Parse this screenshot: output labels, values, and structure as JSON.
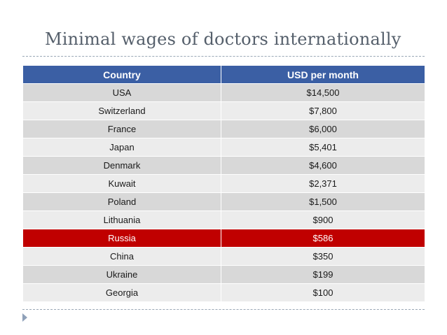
{
  "slide": {
    "title": "Minimal wages of doctors internationally"
  },
  "table": {
    "headers": [
      "Country",
      "USD per month"
    ],
    "rows": [
      {
        "country": "USA",
        "usd": "$14,500"
      },
      {
        "country": "Switzerland",
        "usd": "$7,800"
      },
      {
        "country": "France",
        "usd": "$6,000"
      },
      {
        "country": "Japan",
        "usd": "$5,401"
      },
      {
        "country": "Denmark",
        "usd": "$4,600"
      },
      {
        "country": "Kuwait",
        "usd": "$2,371"
      },
      {
        "country": "Poland",
        "usd": "$1,500"
      },
      {
        "country": "Lithuania",
        "usd": "$900"
      },
      {
        "country": "Russia",
        "usd": "$586"
      },
      {
        "country": "China",
        "usd": "$350"
      },
      {
        "country": "Ukraine",
        "usd": "$199"
      },
      {
        "country": "Georgia",
        "usd": "$100"
      }
    ],
    "highlighted_row": "Russia"
  },
  "colors": {
    "header_bg": "#3b5fa4",
    "row_dark": "#d8d8d8",
    "row_light": "#ececec",
    "highlight": "#c00000",
    "title_text": "#555f6b"
  }
}
